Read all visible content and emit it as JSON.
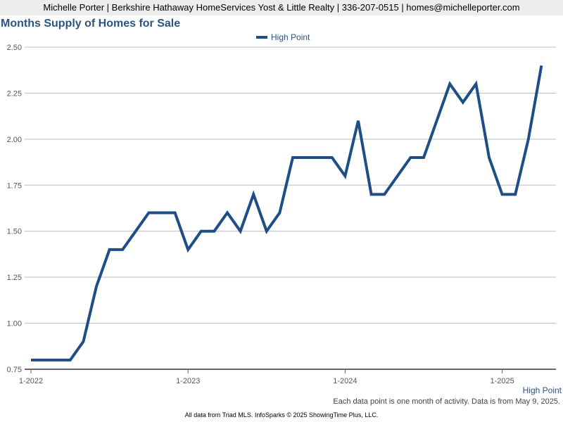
{
  "header": {
    "text": "Michelle Porter | Berkshire Hathaway HomeServices Yost & Little Realty | 336-207-0515 | homes@michelleporter.com"
  },
  "chart_data": {
    "type": "line",
    "title": "Months Supply of Homes for Sale",
    "xlabel": "",
    "ylabel": "",
    "ylim": [
      0.75,
      2.5
    ],
    "y_ticks": [
      "0.75",
      "1.00",
      "1.25",
      "1.50",
      "1.75",
      "2.00",
      "2.25",
      "2.50"
    ],
    "x_ticks": [
      "1-2022",
      "1-2023",
      "1-2024",
      "1-2025"
    ],
    "grid": true,
    "legend": "top-center",
    "series": [
      {
        "name": "High Point",
        "color": "#1f4e86",
        "values": [
          0.8,
          0.8,
          0.8,
          0.8,
          0.9,
          1.2,
          1.4,
          1.4,
          1.5,
          1.6,
          1.6,
          1.6,
          1.4,
          1.5,
          1.5,
          1.6,
          1.5,
          1.7,
          1.5,
          1.6,
          1.9,
          1.9,
          1.9,
          1.9,
          1.8,
          2.1,
          1.7,
          1.7,
          1.8,
          1.9,
          1.9,
          2.1,
          2.3,
          2.2,
          2.3,
          1.9,
          1.7,
          1.7,
          2.0,
          2.4
        ]
      }
    ]
  },
  "right_axis_label": "High Point",
  "note": "Each data point is one month of activity. Data is from May 9, 2025.",
  "footer": "All data from Triad MLS. InfoSparks © 2025 ShowingTime Plus, LLC."
}
